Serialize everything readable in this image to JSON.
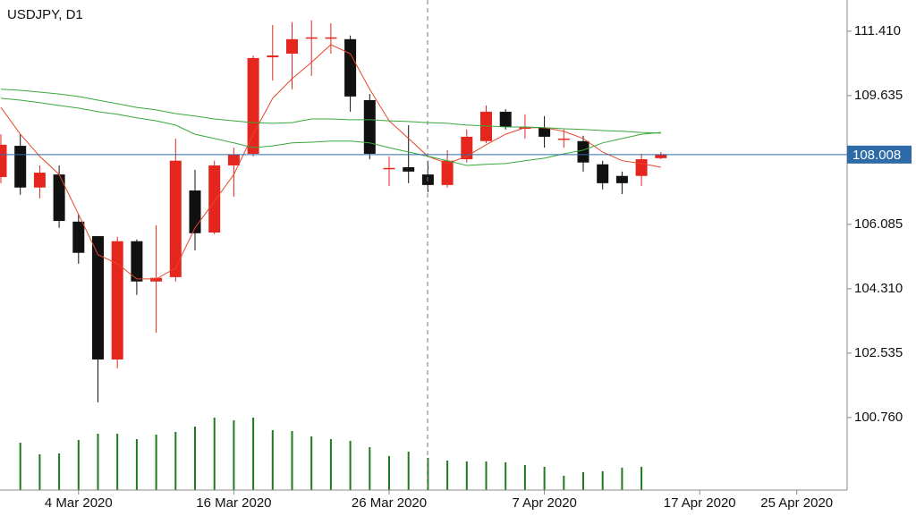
{
  "chart_data": {
    "type": "candlestick",
    "title": "USDJPY, D1",
    "x": [
      "2020-02-27",
      "2020-02-28",
      "2020-03-02",
      "2020-03-03",
      "2020-03-04",
      "2020-03-05",
      "2020-03-06",
      "2020-03-09",
      "2020-03-10",
      "2020-03-11",
      "2020-03-12",
      "2020-03-13",
      "2020-03-16",
      "2020-03-17",
      "2020-03-18",
      "2020-03-19",
      "2020-03-20",
      "2020-03-23",
      "2020-03-24",
      "2020-03-25",
      "2020-03-26",
      "2020-03-27",
      "2020-03-30",
      "2020-03-31",
      "2020-04-01",
      "2020-04-02",
      "2020-04-03",
      "2020-04-06",
      "2020-04-07",
      "2020-04-08",
      "2020-04-09",
      "2020-04-10",
      "2020-04-13",
      "2020-04-14",
      "2020-04-15"
    ],
    "open": [
      107.39,
      108.25,
      107.1,
      107.46,
      106.16,
      105.76,
      102.36,
      105.62,
      104.51,
      104.63,
      107.02,
      105.86,
      107.71,
      108.03,
      110.69,
      110.79,
      111.24,
      111.24,
      111.19,
      109.51,
      107.64,
      107.66,
      107.46,
      107.17,
      107.88,
      108.38,
      109.19,
      108.72,
      108.75,
      108.45,
      108.38,
      107.74,
      107.42,
      107.42,
      107.91
    ],
    "high": [
      108.57,
      108.57,
      107.71,
      107.71,
      106.36,
      105.76,
      105.74,
      105.67,
      106.06,
      108.45,
      107.59,
      107.84,
      108.2,
      110.74,
      111.58,
      111.66,
      111.71,
      111.63,
      111.29,
      109.68,
      107.96,
      108.82,
      107.84,
      108.13,
      108.7,
      109.36,
      109.26,
      109.12,
      109.07,
      108.7,
      108.53,
      107.84,
      107.54,
      108.03,
      108.08
    ],
    "low": [
      107.22,
      106.9,
      106.8,
      105.99,
      105.0,
      101.18,
      102.12,
      104.14,
      103.1,
      104.51,
      105.37,
      105.81,
      106.85,
      107.96,
      110.05,
      109.81,
      110.18,
      110.79,
      109.19,
      107.88,
      107.14,
      107.22,
      106.97,
      107.1,
      107.79,
      108.33,
      108.7,
      108.45,
      108.2,
      108.2,
      107.54,
      107.05,
      106.92,
      107.14,
      107.88
    ],
    "close": [
      108.28,
      107.1,
      107.51,
      106.18,
      105.3,
      102.36,
      105.62,
      104.51,
      104.61,
      107.84,
      105.84,
      107.71,
      108.01,
      110.67,
      110.74,
      111.19,
      111.24,
      111.24,
      109.61,
      108.03,
      107.64,
      107.54,
      107.17,
      107.84,
      108.5,
      109.19,
      108.77,
      108.77,
      108.5,
      108.45,
      107.79,
      107.22,
      107.22,
      107.88,
      108.01
    ],
    "volume": [
      null,
      53,
      40,
      41,
      56,
      63,
      63,
      57,
      62,
      65,
      71,
      81,
      78,
      81,
      67,
      66,
      60,
      57,
      55,
      48,
      38,
      43,
      36,
      33,
      32,
      32,
      31,
      28,
      26,
      16,
      20,
      21,
      25,
      26,
      null
    ],
    "up_color": "#e5261f",
    "down_color": "#111111",
    "volume_color": "#1f7a1f",
    "lines": [
      {
        "color": "#e8452c",
        "values": [
          109.31,
          108.57,
          107.96,
          107.46,
          106.36,
          105.25,
          105.0,
          104.58,
          104.58,
          104.88,
          105.99,
          106.72,
          107.46,
          108.57,
          109.56,
          110.1,
          110.55,
          111.04,
          110.79,
          109.81,
          108.94,
          108.45,
          107.96,
          107.76,
          107.96,
          108.28,
          108.57,
          108.75,
          108.75,
          108.65,
          108.45,
          108.08,
          107.84,
          107.76,
          107.66
        ]
      },
      {
        "color": "#3aa83a",
        "values": [
          109.81,
          109.78,
          109.73,
          109.68,
          109.61,
          109.51,
          109.41,
          109.31,
          109.24,
          109.14,
          109.07,
          108.99,
          108.94,
          108.89,
          108.87,
          108.89,
          108.99,
          108.99,
          108.97,
          108.97,
          108.94,
          108.92,
          108.89,
          108.87,
          108.82,
          108.8,
          108.77,
          108.77,
          108.75,
          108.72,
          108.7,
          108.67,
          108.65,
          108.62,
          108.6
        ]
      },
      {
        "color": "#3aa83a",
        "values": [
          109.56,
          109.51,
          109.44,
          109.36,
          109.29,
          109.19,
          109.12,
          109.02,
          108.94,
          108.82,
          108.57,
          108.45,
          108.33,
          108.2,
          108.25,
          108.33,
          108.35,
          108.38,
          108.38,
          108.33,
          108.2,
          108.08,
          107.96,
          107.84,
          107.71,
          107.74,
          107.76,
          107.84,
          107.91,
          108.03,
          108.13,
          108.33,
          108.45,
          108.57,
          108.62
        ]
      }
    ],
    "last_price": 108.008,
    "last_price_color": "#2c6aa8",
    "ylim": [
      98.76,
      112.27
    ],
    "yticks": [
      {
        "value": 111.41,
        "label": "111.410"
      },
      109.635,
      106.085,
      {
        "value": 104.31,
        "label": "104.310"
      },
      102.535,
      {
        "value": 100.76,
        "label": "100.760"
      }
    ],
    "xticks": [
      {
        "value": "2020-03-04",
        "label": "4 Mar 2020"
      },
      {
        "value": "2020-03-16",
        "label": "16 Mar 2020"
      },
      {
        "value": "2020-03-26",
        "label": "26 Mar 2020"
      },
      {
        "value": "2020-04-07",
        "label": "7 Apr 2020"
      },
      {
        "value": "2020-04-17",
        "label": "17 Apr 2020"
      },
      {
        "value": "2020-04-25",
        "label": "25 Apr 2020"
      }
    ]
  }
}
